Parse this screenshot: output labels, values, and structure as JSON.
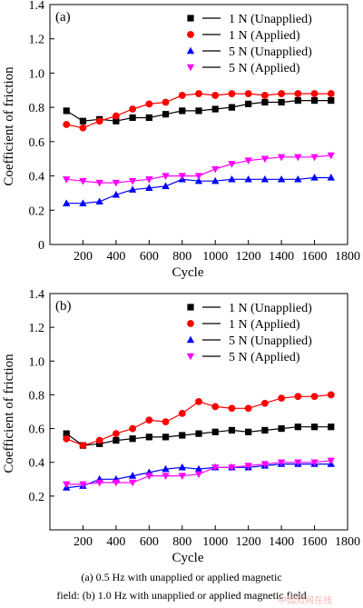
{
  "chart_data": [
    {
      "type": "line",
      "panel_label": "(a)",
      "xlabel": "Cycle",
      "ylabel": "Coefficient of friction",
      "xlim": [
        0,
        1800
      ],
      "ylim": [
        0,
        1.4
      ],
      "x_ticks": [
        200,
        400,
        600,
        800,
        1000,
        1200,
        1400,
        1600,
        1800
      ],
      "y_ticks": [
        0,
        0.2,
        0.4,
        0.6,
        0.8,
        1.0,
        1.2,
        1.4
      ],
      "y_tick_labels": [
        "0",
        "0.2",
        "0.4",
        "0.6",
        "0.8",
        "1.0",
        "1.2",
        "1.4"
      ],
      "legend_position": "top-right",
      "x": [
        100,
        200,
        300,
        400,
        500,
        600,
        700,
        800,
        900,
        1000,
        1100,
        1200,
        1300,
        1400,
        1500,
        1600,
        1700
      ],
      "series": [
        {
          "name": "1 N (Unapplied)",
          "color": "#000000",
          "marker": "square",
          "values": [
            0.78,
            0.72,
            0.73,
            0.72,
            0.74,
            0.74,
            0.76,
            0.78,
            0.78,
            0.79,
            0.8,
            0.82,
            0.83,
            0.83,
            0.84,
            0.84,
            0.84
          ]
        },
        {
          "name": "1 N (Applied)",
          "color": "#ff0000",
          "marker": "circle",
          "values": [
            0.7,
            0.68,
            0.72,
            0.75,
            0.79,
            0.82,
            0.83,
            0.87,
            0.88,
            0.87,
            0.88,
            0.88,
            0.87,
            0.88,
            0.88,
            0.88,
            0.88
          ]
        },
        {
          "name": "5 N (Unapplied)",
          "color": "#0000ff",
          "marker": "triangle-up",
          "values": [
            0.24,
            0.24,
            0.25,
            0.29,
            0.32,
            0.33,
            0.34,
            0.38,
            0.37,
            0.37,
            0.38,
            0.38,
            0.38,
            0.38,
            0.38,
            0.39,
            0.39
          ]
        },
        {
          "name": "5 N (Applied)",
          "color": "#ff00ff",
          "marker": "triangle-down",
          "values": [
            0.38,
            0.37,
            0.36,
            0.36,
            0.37,
            0.38,
            0.4,
            0.4,
            0.4,
            0.44,
            0.47,
            0.49,
            0.5,
            0.51,
            0.51,
            0.51,
            0.52
          ]
        }
      ]
    },
    {
      "type": "line",
      "panel_label": "(b)",
      "xlabel": "Cycle",
      "ylabel": "Coefficient of friction",
      "xlim": [
        0,
        1800
      ],
      "ylim": [
        0,
        1.4
      ],
      "x_ticks": [
        200,
        400,
        600,
        800,
        1000,
        1200,
        1400,
        1600,
        1800
      ],
      "y_ticks": [
        0.2,
        0.4,
        0.6,
        0.8,
        1.0,
        1.2,
        1.4
      ],
      "y_tick_labels": [
        "0.2",
        "0.4",
        "0.6",
        "0.8",
        "1.0",
        "1.2",
        "1.4"
      ],
      "legend_position": "top-right",
      "x": [
        100,
        200,
        300,
        400,
        500,
        600,
        700,
        800,
        900,
        1000,
        1100,
        1200,
        1300,
        1400,
        1500,
        1600,
        1700
      ],
      "series": [
        {
          "name": "1 N (Unapplied)",
          "color": "#000000",
          "marker": "square",
          "values": [
            0.57,
            0.5,
            0.51,
            0.53,
            0.54,
            0.55,
            0.55,
            0.56,
            0.57,
            0.58,
            0.59,
            0.58,
            0.59,
            0.6,
            0.61,
            0.61,
            0.61
          ]
        },
        {
          "name": "1 N (Applied)",
          "color": "#ff0000",
          "marker": "circle",
          "values": [
            0.54,
            0.5,
            0.53,
            0.57,
            0.6,
            0.65,
            0.64,
            0.69,
            0.76,
            0.73,
            0.72,
            0.72,
            0.75,
            0.78,
            0.79,
            0.79,
            0.8
          ]
        },
        {
          "name": "5 N (Unapplied)",
          "color": "#0000ff",
          "marker": "triangle-up",
          "values": [
            0.25,
            0.26,
            0.3,
            0.3,
            0.32,
            0.34,
            0.36,
            0.37,
            0.36,
            0.37,
            0.37,
            0.37,
            0.38,
            0.39,
            0.39,
            0.39,
            0.39
          ]
        },
        {
          "name": "5 N (Applied)",
          "color": "#ff00ff",
          "marker": "triangle-down",
          "values": [
            0.27,
            0.27,
            0.28,
            0.28,
            0.28,
            0.32,
            0.32,
            0.32,
            0.33,
            0.37,
            0.37,
            0.38,
            0.39,
            0.4,
            0.4,
            0.4,
            0.41
          ]
        }
      ]
    }
  ],
  "caption": {
    "line1": "(a) 0.5  Hz with unapplied or applied magnetic",
    "line2": "field: (b) 1.0 Hz with unapplied or applied magnetic field"
  },
  "watermark": "中国知网在线"
}
